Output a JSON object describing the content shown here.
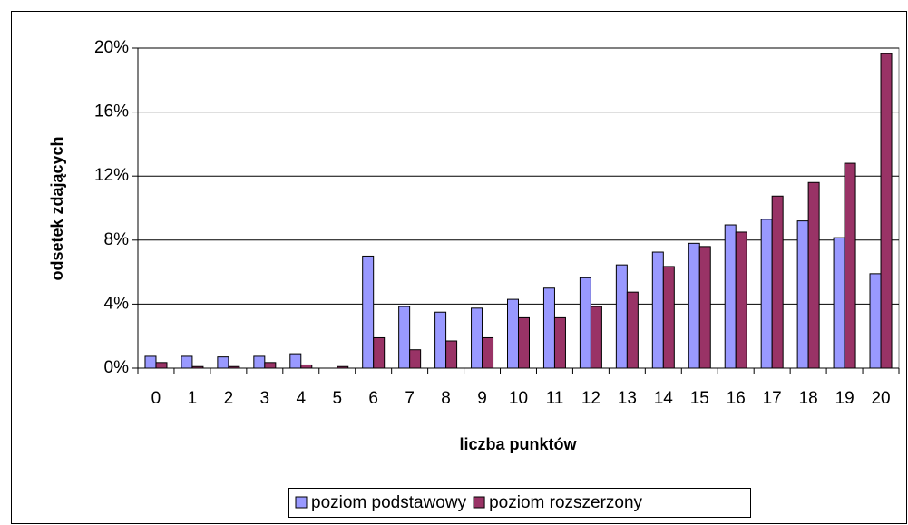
{
  "chart_data": {
    "type": "bar",
    "categories": [
      "0",
      "1",
      "2",
      "3",
      "4",
      "5",
      "6",
      "7",
      "8",
      "9",
      "10",
      "11",
      "12",
      "13",
      "14",
      "15",
      "16",
      "17",
      "18",
      "19",
      "20"
    ],
    "series": [
      {
        "name": "poziom podstawowy",
        "color": "#9999ff",
        "values": [
          0.74,
          0.74,
          0.7,
          0.74,
          0.9,
          0,
          7.0,
          3.85,
          3.5,
          3.75,
          4.3,
          5.0,
          5.65,
          6.45,
          7.25,
          7.8,
          8.95,
          9.3,
          9.2,
          8.15,
          5.9
        ]
      },
      {
        "name": "poziom rozszerzony",
        "color": "#993366",
        "values": [
          0.35,
          0.1,
          0.1,
          0.35,
          0.2,
          0.1,
          1.9,
          1.15,
          1.7,
          1.9,
          3.15,
          3.15,
          3.85,
          4.75,
          6.35,
          7.6,
          8.5,
          10.75,
          11.6,
          12.8,
          19.65
        ]
      }
    ],
    "xlabel": "liczba punktów",
    "ylabel": "odsetek zdających",
    "ylim": [
      0,
      20
    ],
    "yticks": [
      {
        "value": 0,
        "label": "0%"
      },
      {
        "value": 4,
        "label": "4%"
      },
      {
        "value": 8,
        "label": "8%"
      },
      {
        "value": 12,
        "label": "12%"
      },
      {
        "value": 16,
        "label": "16%"
      },
      {
        "value": 20,
        "label": "20%"
      }
    ],
    "grid": true,
    "legend": "bottom"
  }
}
